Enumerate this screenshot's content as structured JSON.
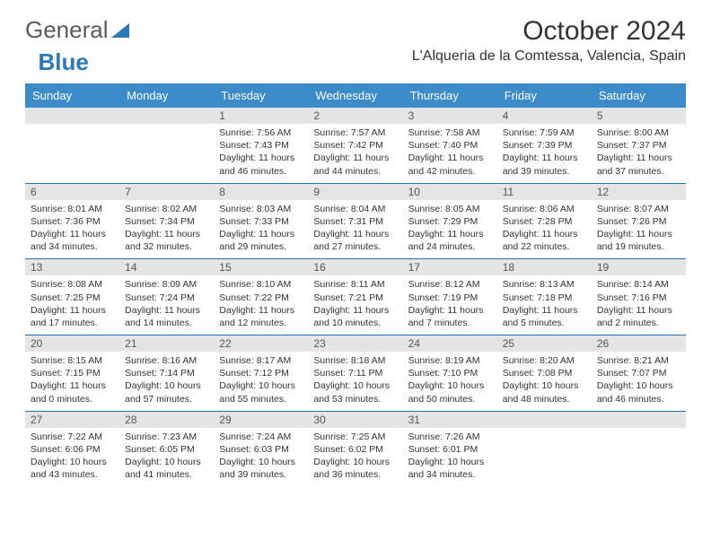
{
  "logo": {
    "text_general": "General",
    "text_blue": "Blue"
  },
  "title": "October 2024",
  "location": "L'Alqueria de la Comtessa, Valencia, Spain",
  "colors": {
    "header_bg": "#3b8bc9",
    "header_text": "#ffffff",
    "daynum_bg": "#e5e5e5",
    "row_border": "#2a6fa8",
    "logo_gray": "#5a5a5a",
    "logo_blue": "#2a7ab8",
    "text": "#333333"
  },
  "weekdays": [
    "Sunday",
    "Monday",
    "Tuesday",
    "Wednesday",
    "Thursday",
    "Friday",
    "Saturday"
  ],
  "weeks": [
    [
      {
        "day": "",
        "sunrise": "",
        "sunset": "",
        "daylight": ""
      },
      {
        "day": "",
        "sunrise": "",
        "sunset": "",
        "daylight": ""
      },
      {
        "day": "1",
        "sunrise": "Sunrise: 7:56 AM",
        "sunset": "Sunset: 7:43 PM",
        "daylight": "Daylight: 11 hours and 46 minutes."
      },
      {
        "day": "2",
        "sunrise": "Sunrise: 7:57 AM",
        "sunset": "Sunset: 7:42 PM",
        "daylight": "Daylight: 11 hours and 44 minutes."
      },
      {
        "day": "3",
        "sunrise": "Sunrise: 7:58 AM",
        "sunset": "Sunset: 7:40 PM",
        "daylight": "Daylight: 11 hours and 42 minutes."
      },
      {
        "day": "4",
        "sunrise": "Sunrise: 7:59 AM",
        "sunset": "Sunset: 7:39 PM",
        "daylight": "Daylight: 11 hours and 39 minutes."
      },
      {
        "day": "5",
        "sunrise": "Sunrise: 8:00 AM",
        "sunset": "Sunset: 7:37 PM",
        "daylight": "Daylight: 11 hours and 37 minutes."
      }
    ],
    [
      {
        "day": "6",
        "sunrise": "Sunrise: 8:01 AM",
        "sunset": "Sunset: 7:36 PM",
        "daylight": "Daylight: 11 hours and 34 minutes."
      },
      {
        "day": "7",
        "sunrise": "Sunrise: 8:02 AM",
        "sunset": "Sunset: 7:34 PM",
        "daylight": "Daylight: 11 hours and 32 minutes."
      },
      {
        "day": "8",
        "sunrise": "Sunrise: 8:03 AM",
        "sunset": "Sunset: 7:33 PM",
        "daylight": "Daylight: 11 hours and 29 minutes."
      },
      {
        "day": "9",
        "sunrise": "Sunrise: 8:04 AM",
        "sunset": "Sunset: 7:31 PM",
        "daylight": "Daylight: 11 hours and 27 minutes."
      },
      {
        "day": "10",
        "sunrise": "Sunrise: 8:05 AM",
        "sunset": "Sunset: 7:29 PM",
        "daylight": "Daylight: 11 hours and 24 minutes."
      },
      {
        "day": "11",
        "sunrise": "Sunrise: 8:06 AM",
        "sunset": "Sunset: 7:28 PM",
        "daylight": "Daylight: 11 hours and 22 minutes."
      },
      {
        "day": "12",
        "sunrise": "Sunrise: 8:07 AM",
        "sunset": "Sunset: 7:26 PM",
        "daylight": "Daylight: 11 hours and 19 minutes."
      }
    ],
    [
      {
        "day": "13",
        "sunrise": "Sunrise: 8:08 AM",
        "sunset": "Sunset: 7:25 PM",
        "daylight": "Daylight: 11 hours and 17 minutes."
      },
      {
        "day": "14",
        "sunrise": "Sunrise: 8:09 AM",
        "sunset": "Sunset: 7:24 PM",
        "daylight": "Daylight: 11 hours and 14 minutes."
      },
      {
        "day": "15",
        "sunrise": "Sunrise: 8:10 AM",
        "sunset": "Sunset: 7:22 PM",
        "daylight": "Daylight: 11 hours and 12 minutes."
      },
      {
        "day": "16",
        "sunrise": "Sunrise: 8:11 AM",
        "sunset": "Sunset: 7:21 PM",
        "daylight": "Daylight: 11 hours and 10 minutes."
      },
      {
        "day": "17",
        "sunrise": "Sunrise: 8:12 AM",
        "sunset": "Sunset: 7:19 PM",
        "daylight": "Daylight: 11 hours and 7 minutes."
      },
      {
        "day": "18",
        "sunrise": "Sunrise: 8:13 AM",
        "sunset": "Sunset: 7:18 PM",
        "daylight": "Daylight: 11 hours and 5 minutes."
      },
      {
        "day": "19",
        "sunrise": "Sunrise: 8:14 AM",
        "sunset": "Sunset: 7:16 PM",
        "daylight": "Daylight: 11 hours and 2 minutes."
      }
    ],
    [
      {
        "day": "20",
        "sunrise": "Sunrise: 8:15 AM",
        "sunset": "Sunset: 7:15 PM",
        "daylight": "Daylight: 11 hours and 0 minutes."
      },
      {
        "day": "21",
        "sunrise": "Sunrise: 8:16 AM",
        "sunset": "Sunset: 7:14 PM",
        "daylight": "Daylight: 10 hours and 57 minutes."
      },
      {
        "day": "22",
        "sunrise": "Sunrise: 8:17 AM",
        "sunset": "Sunset: 7:12 PM",
        "daylight": "Daylight: 10 hours and 55 minutes."
      },
      {
        "day": "23",
        "sunrise": "Sunrise: 8:18 AM",
        "sunset": "Sunset: 7:11 PM",
        "daylight": "Daylight: 10 hours and 53 minutes."
      },
      {
        "day": "24",
        "sunrise": "Sunrise: 8:19 AM",
        "sunset": "Sunset: 7:10 PM",
        "daylight": "Daylight: 10 hours and 50 minutes."
      },
      {
        "day": "25",
        "sunrise": "Sunrise: 8:20 AM",
        "sunset": "Sunset: 7:08 PM",
        "daylight": "Daylight: 10 hours and 48 minutes."
      },
      {
        "day": "26",
        "sunrise": "Sunrise: 8:21 AM",
        "sunset": "Sunset: 7:07 PM",
        "daylight": "Daylight: 10 hours and 46 minutes."
      }
    ],
    [
      {
        "day": "27",
        "sunrise": "Sunrise: 7:22 AM",
        "sunset": "Sunset: 6:06 PM",
        "daylight": "Daylight: 10 hours and 43 minutes."
      },
      {
        "day": "28",
        "sunrise": "Sunrise: 7:23 AM",
        "sunset": "Sunset: 6:05 PM",
        "daylight": "Daylight: 10 hours and 41 minutes."
      },
      {
        "day": "29",
        "sunrise": "Sunrise: 7:24 AM",
        "sunset": "Sunset: 6:03 PM",
        "daylight": "Daylight: 10 hours and 39 minutes."
      },
      {
        "day": "30",
        "sunrise": "Sunrise: 7:25 AM",
        "sunset": "Sunset: 6:02 PM",
        "daylight": "Daylight: 10 hours and 36 minutes."
      },
      {
        "day": "31",
        "sunrise": "Sunrise: 7:26 AM",
        "sunset": "Sunset: 6:01 PM",
        "daylight": "Daylight: 10 hours and 34 minutes."
      },
      {
        "day": "",
        "sunrise": "",
        "sunset": "",
        "daylight": ""
      },
      {
        "day": "",
        "sunrise": "",
        "sunset": "",
        "daylight": ""
      }
    ]
  ]
}
